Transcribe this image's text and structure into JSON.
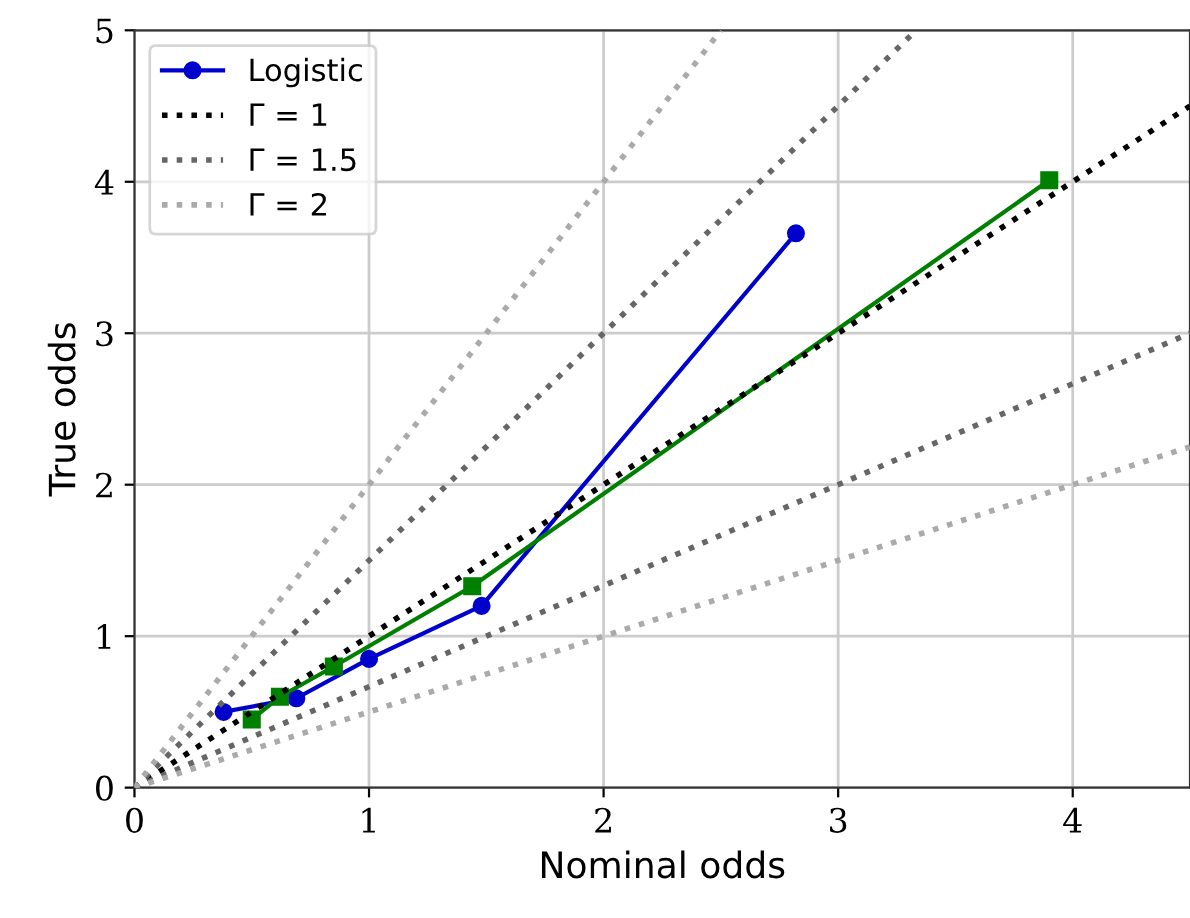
{
  "chart_data": {
    "type": "line",
    "xlabel": "Nominal odds",
    "ylabel": "True odds",
    "xlim": [
      0,
      4.5
    ],
    "ylim": [
      0,
      5
    ],
    "xticks": [
      0,
      1,
      2,
      3,
      4
    ],
    "yticks": [
      0,
      1,
      2,
      3,
      4,
      5
    ],
    "grid": true,
    "legend": "top left",
    "series": [
      {
        "name": "Logistic",
        "color": "#0000cc",
        "marker": "circle",
        "line_style": "solid",
        "x": [
          0.38,
          0.69,
          1.0,
          1.48,
          2.82
        ],
        "values": [
          0.5,
          0.59,
          0.85,
          1.2,
          3.66
        ]
      },
      {
        "color": "#008000",
        "marker": "square",
        "line_style": "solid",
        "x": [
          0.5,
          0.62,
          0.85,
          1.44,
          3.9
        ],
        "values": [
          0.45,
          0.6,
          0.8,
          1.33,
          4.01
        ]
      },
      {
        "name": "Γ = 1",
        "color": "#000000",
        "marker": "none",
        "line_style": "dotted",
        "x": [
          0,
          4.5
        ],
        "values": [
          0,
          4.5
        ]
      },
      {
        "name": "Γ = 1.5",
        "color": "#666666",
        "marker": "none",
        "line_style": "dotted",
        "x": [
          0,
          3.333
        ],
        "values": [
          0,
          5
        ]
      },
      {
        "color": "#666666",
        "marker": "none",
        "line_style": "dotted",
        "x": [
          0,
          4.5
        ],
        "values": [
          0,
          3
        ]
      },
      {
        "name": "Γ = 2",
        "color": "#aaaaaa",
        "marker": "none",
        "line_style": "dotted",
        "x": [
          0,
          2.5
        ],
        "values": [
          0,
          5
        ]
      },
      {
        "color": "#aaaaaa",
        "marker": "none",
        "line_style": "dotted",
        "x": [
          0,
          4.5
        ],
        "values": [
          0,
          2.25
        ]
      }
    ]
  }
}
